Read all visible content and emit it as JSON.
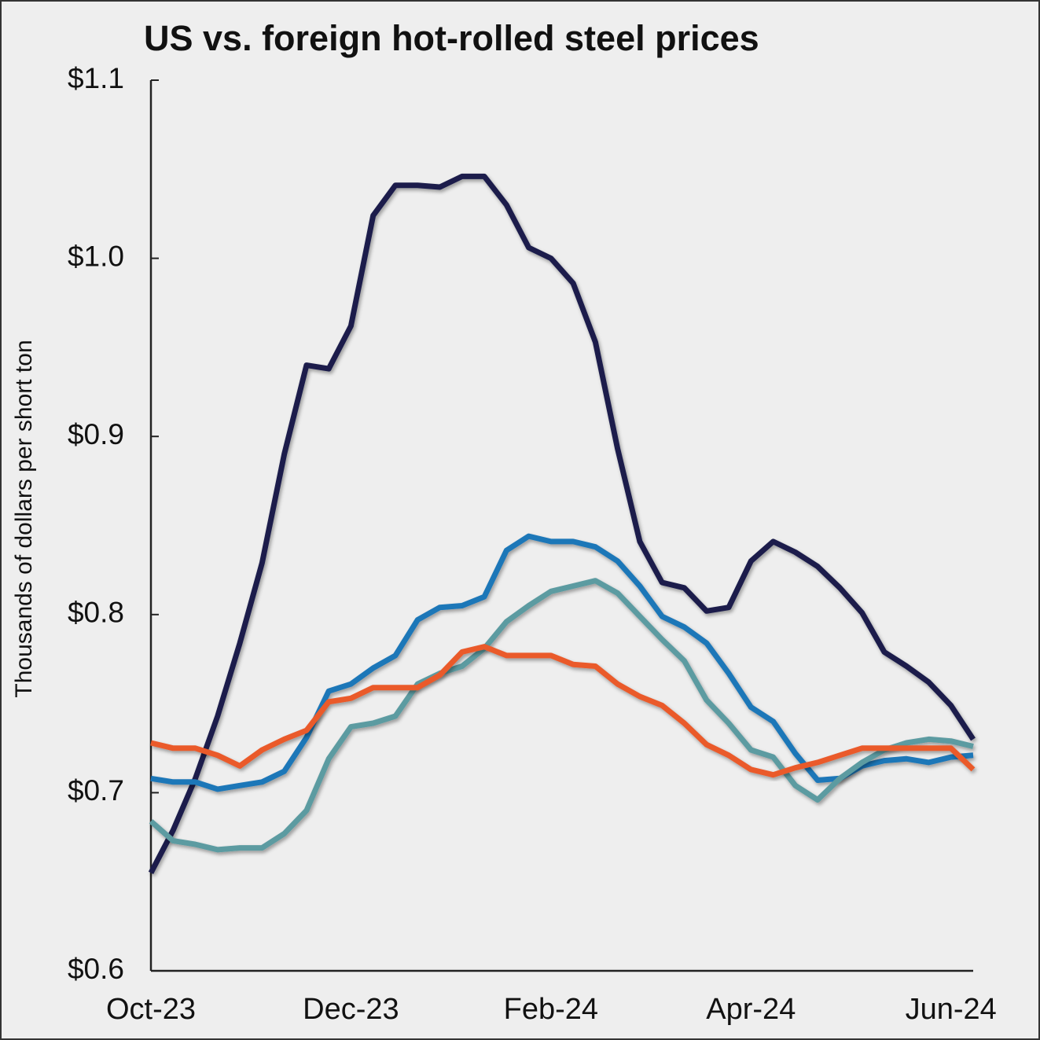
{
  "chart_data": {
    "type": "line",
    "title": "US vs. foreign hot-rolled steel prices",
    "y_label": "Thousands of dollars per short ton",
    "categories": [
      "Oct-23",
      null,
      null,
      null,
      null,
      null,
      null,
      null,
      null,
      "Dec-23",
      null,
      null,
      null,
      null,
      null,
      null,
      null,
      null,
      "Feb-24",
      null,
      null,
      null,
      null,
      null,
      null,
      null,
      null,
      "Apr-24",
      null,
      null,
      null,
      null,
      null,
      null,
      null,
      null,
      "Jun-24",
      null
    ],
    "series": [
      {
        "color": "#1a1f4b",
        "values": [
          0.655,
          0.679,
          0.708,
          0.743,
          0.784,
          0.829,
          0.89,
          0.94,
          0.938,
          0.962,
          1.024,
          1.041,
          1.041,
          1.04,
          1.046,
          1.046,
          1.03,
          1.006,
          1.0,
          0.986,
          0.953,
          0.893,
          0.841,
          0.818,
          0.815,
          0.802,
          0.804,
          0.83,
          0.841,
          0.835,
          0.827,
          0.815,
          0.801,
          0.779,
          0.771,
          0.762,
          0.749,
          0.73
        ]
      },
      {
        "color": "#1f77b8",
        "values": [
          0.708,
          0.706,
          0.706,
          0.702,
          0.704,
          0.706,
          0.712,
          0.731,
          0.757,
          0.761,
          0.77,
          0.777,
          0.797,
          0.804,
          0.805,
          0.81,
          0.836,
          0.844,
          0.841,
          0.841,
          0.838,
          0.83,
          0.816,
          0.799,
          0.793,
          0.784,
          0.767,
          0.748,
          0.74,
          0.722,
          0.707,
          0.708,
          0.715,
          0.718,
          0.719,
          0.717,
          0.72,
          0.721
        ]
      },
      {
        "color": "#5b9ba1",
        "values": [
          0.684,
          0.673,
          0.671,
          0.668,
          0.669,
          0.669,
          0.677,
          0.69,
          0.719,
          0.737,
          0.739,
          0.743,
          0.761,
          0.767,
          0.771,
          0.781,
          0.796,
          0.805,
          0.813,
          0.816,
          0.819,
          0.812,
          0.799,
          0.786,
          0.774,
          0.752,
          0.739,
          0.724,
          0.72,
          0.704,
          0.696,
          0.708,
          0.717,
          0.724,
          0.728,
          0.73,
          0.729,
          0.726
        ]
      },
      {
        "color": "#ea5a2b",
        "values": [
          0.728,
          0.725,
          0.725,
          0.721,
          0.715,
          0.724,
          0.73,
          0.735,
          0.751,
          0.753,
          0.759,
          0.759,
          0.759,
          0.766,
          0.779,
          0.782,
          0.777,
          0.777,
          0.777,
          0.772,
          0.771,
          0.761,
          0.754,
          0.749,
          0.739,
          0.727,
          0.721,
          0.713,
          0.71,
          0.714,
          0.717,
          0.721,
          0.725,
          0.725,
          0.725,
          0.725,
          0.725,
          0.713
        ]
      }
    ],
    "ylim": [
      0.6,
      1.1
    ],
    "yticks": [
      {
        "value": 0.6,
        "label": "$0.6"
      },
      {
        "value": 0.7,
        "label": "$0.7"
      },
      {
        "value": 0.8,
        "label": "$0.8"
      },
      {
        "value": 0.9,
        "label": "$0.9"
      },
      {
        "value": 1.0,
        "label": "$1.0"
      },
      {
        "value": 1.1,
        "label": "$1.1"
      }
    ],
    "grid": false
  }
}
